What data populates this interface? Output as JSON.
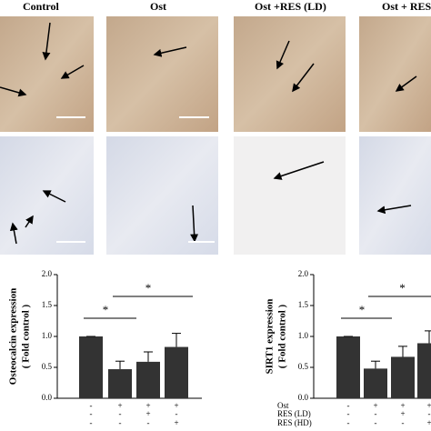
{
  "panel_headers": [
    "Control",
    "Ost",
    "Ost +RES (LD)",
    "Ost + RES"
  ],
  "chart_data": [
    {
      "type": "bar",
      "ylabel": "Osteocalcin expression",
      "ylabel2": "( Fold control )",
      "values": [
        1.0,
        0.47,
        0.59,
        0.83
      ],
      "errors": [
        0,
        0.13,
        0.16,
        0.22
      ],
      "color": "#333333",
      "ylim": [
        0,
        2
      ],
      "yticks": [
        {
          "value": 0,
          "label": "0.0"
        },
        {
          "value": 0.5,
          "label": "0.5"
        },
        {
          "value": 1,
          "label": "1.0"
        },
        {
          "value": 1.5,
          "label": "1.5"
        },
        {
          "value": 2,
          "label": "2.0"
        }
      ],
      "annotations": [
        "*",
        "*"
      ],
      "treatments": [
        [
          "-",
          "+",
          "+",
          "+"
        ],
        [
          "-",
          "-",
          "+",
          "-"
        ],
        [
          "-",
          "-",
          "-",
          "+"
        ]
      ]
    },
    {
      "type": "bar",
      "ylabel": "SIRT1 expression",
      "ylabel2": "( Fold control )",
      "values": [
        1.0,
        0.48,
        0.67,
        0.89
      ],
      "errors": [
        0,
        0.12,
        0.17,
        0.2
      ],
      "color": "#333333",
      "ylim": [
        0,
        2
      ],
      "yticks": [
        {
          "value": 0,
          "label": "0.0"
        },
        {
          "value": 0.5,
          "label": "0.5"
        },
        {
          "value": 1,
          "label": "1.0"
        },
        {
          "value": 1.5,
          "label": "1.5"
        },
        {
          "value": 2,
          "label": "2.0"
        }
      ],
      "annotations": [
        "*",
        "*"
      ],
      "treatment_labels": [
        "Ost",
        "RES (LD)",
        "RES (HD)"
      ],
      "treatments": [
        [
          "-",
          "+",
          "+",
          "+"
        ],
        [
          "-",
          "-",
          "+",
          "-"
        ],
        [
          "-",
          "-",
          "-",
          "+"
        ]
      ]
    }
  ]
}
